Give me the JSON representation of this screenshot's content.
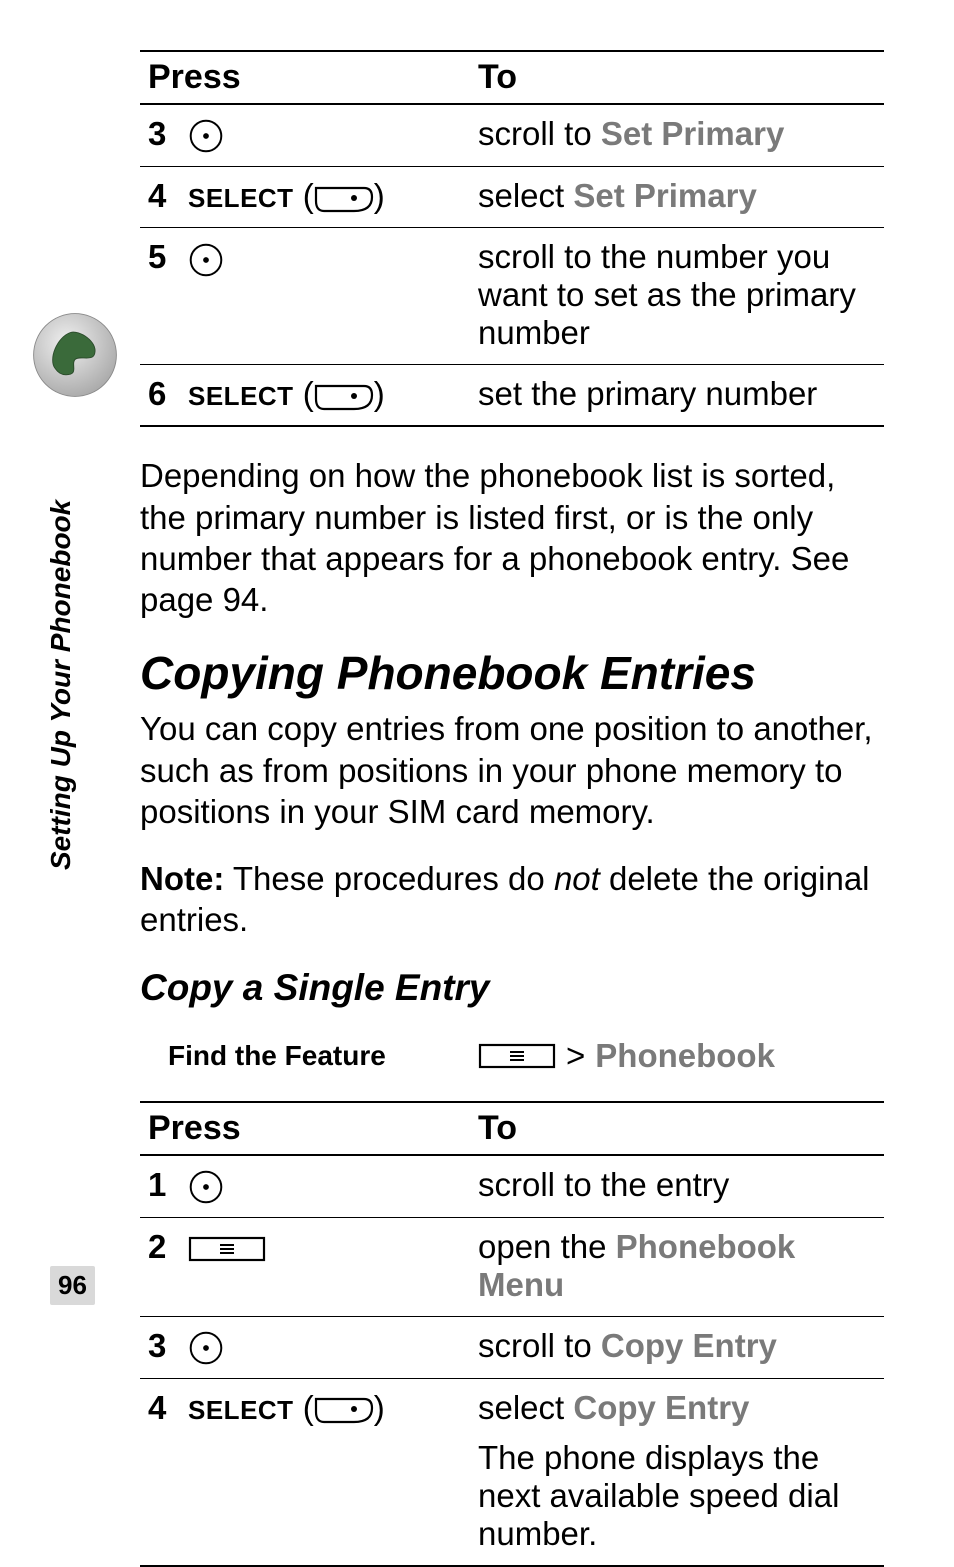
{
  "side_label": "Setting Up Your Phonebook",
  "page_number": "96",
  "table1": {
    "head_press": "Press",
    "head_to": "To",
    "rows": [
      {
        "n": "3",
        "press_kind": "nav",
        "to_pre": "scroll to ",
        "to_ui": "Set Primary",
        "to_post": ""
      },
      {
        "n": "4",
        "press_kind": "select",
        "to_pre": "select ",
        "to_ui": "Set Primary",
        "to_post": ""
      },
      {
        "n": "5",
        "press_kind": "nav",
        "to_pre": "scroll to the number you want to set as the primary number",
        "to_ui": "",
        "to_post": ""
      },
      {
        "n": "6",
        "press_kind": "select",
        "to_pre": "set the primary number",
        "to_ui": "",
        "to_post": ""
      }
    ],
    "select_word": "SELECT"
  },
  "para_after_t1": "Depending on how the phonebook list is sorted, the primary number is listed first, or is the only number that appears for a phonebook entry. See page 94.",
  "heading": "Copying Phonebook Entries",
  "para_intro": "You can copy entries from one position to another, such as from positions in your phone memory to positions in your SIM card memory.",
  "note_label": "Note:",
  "note_pre": " These procedures do ",
  "note_italic": "not",
  "note_post": " delete the original entries.",
  "subheading": "Copy a Single Entry",
  "feature_label": "Find the Feature",
  "feature_gt": ">",
  "feature_ui": "Phonebook",
  "table2": {
    "head_press": "Press",
    "head_to": "To",
    "select_word": "SELECT",
    "rows": [
      {
        "n": "1",
        "press_kind": "nav",
        "to_pre": "scroll to the entry",
        "to_ui": "",
        "to_post": "",
        "to2": ""
      },
      {
        "n": "2",
        "press_kind": "menu",
        "to_pre": "open the ",
        "to_ui": "Phonebook Menu",
        "to_post": "",
        "to2": ""
      },
      {
        "n": "3",
        "press_kind": "nav",
        "to_pre": "scroll to ",
        "to_ui": "Copy Entry",
        "to_post": "",
        "to2": ""
      },
      {
        "n": "4",
        "press_kind": "select",
        "to_pre": "select ",
        "to_ui": "Copy Entry",
        "to_post": "",
        "to2": "The phone displays the next available speed dial number."
      }
    ]
  },
  "colors": {
    "text": "#000000",
    "ui_grey": "#7a7a7a",
    "icon_stroke": "#000000",
    "badge_bg": "#cfcfcf"
  }
}
